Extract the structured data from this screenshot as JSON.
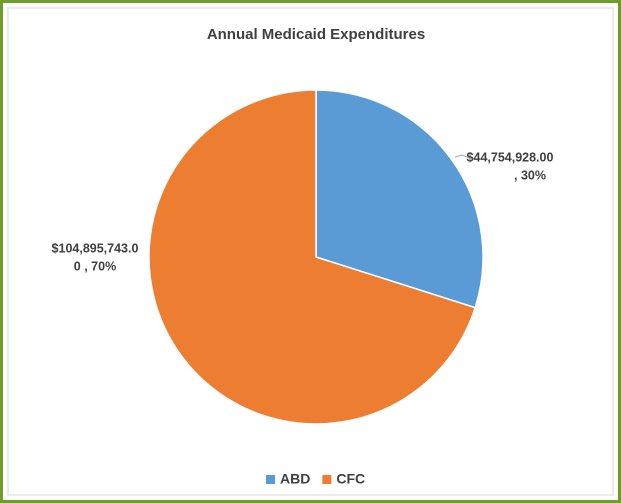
{
  "chart_data": {
    "type": "pie",
    "title": "Annual Medicaid Expenditures",
    "categories": [
      "ABD",
      "CFC"
    ],
    "values": [
      44754928.0,
      104895743.0
    ],
    "value_labels": [
      [
        "$44,754,928.00",
        ", 30%"
      ],
      [
        "$104,895,743.0",
        "0 , 70%"
      ]
    ],
    "colors": [
      "#5b9bd5",
      "#ed7d31"
    ],
    "legend": "bottom"
  }
}
